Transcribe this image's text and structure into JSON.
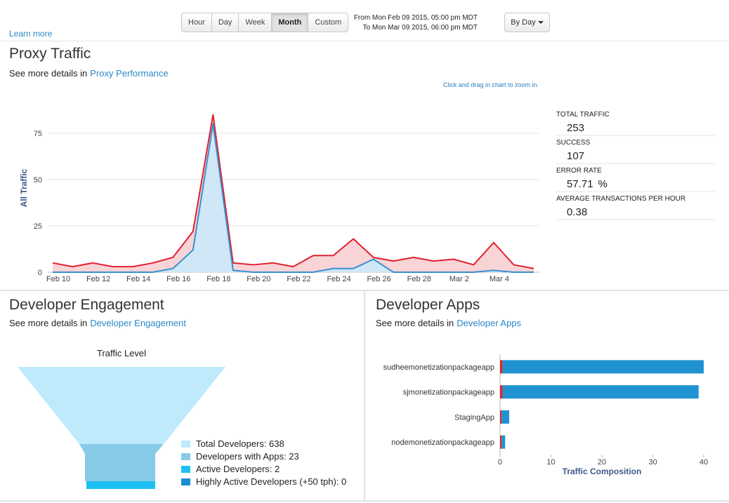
{
  "range_buttons": [
    "Hour",
    "Day",
    "Week",
    "Month",
    "Custom"
  ],
  "active_range_index": 3,
  "from": "From Mon Feb 09 2015, 05:00 pm MDT",
  "to": "To Mon Mar 09 2015, 06:00 pm MDT",
  "interval": "By Day",
  "learn_more": "Learn more",
  "proxy": {
    "title": "Proxy Traffic",
    "details_prefix": "See more details in",
    "details_link": "Proxy Performance",
    "zoom_hint": "Click and drag in chart to zoom in.",
    "chart": {
      "type": "area",
      "ylabel": "All Traffic",
      "categories": [
        "Feb 10",
        null,
        "Feb 12",
        null,
        "Feb 14",
        null,
        "Feb 16",
        null,
        "Feb 18",
        null,
        "Feb 20",
        null,
        "Feb 22",
        null,
        "Feb 24",
        null,
        "Feb 26",
        null,
        "Feb 28",
        null,
        "Mar 2",
        null,
        "Mar 4",
        null,
        null
      ],
      "series": [
        {
          "color": "#e0202f",
          "fill": "#f9d4d7",
          "values": [
            5,
            3,
            5,
            3,
            3,
            5,
            8,
            22,
            85,
            5,
            4,
            5,
            3,
            9,
            9,
            18,
            8,
            6,
            8,
            6,
            7,
            4,
            16,
            4,
            2
          ]
        },
        {
          "color": "#3a8fd0",
          "fill": "#cfe7f6",
          "values": [
            0,
            0,
            0,
            0,
            0,
            0,
            2,
            12,
            80,
            1,
            0,
            0,
            0,
            0,
            2,
            2,
            7,
            0,
            0,
            0,
            0,
            0,
            1,
            0,
            0
          ]
        }
      ],
      "ylim": [
        0,
        90
      ],
      "yticks": [
        0,
        25,
        50,
        75
      ],
      "grid": true
    },
    "stats": [
      {
        "label": "TOTAL TRAFFIC",
        "value": 253
      },
      {
        "label": "SUCCESS",
        "value": 107
      },
      {
        "label": "ERROR RATE",
        "value": 57.71,
        "unit": "%"
      },
      {
        "label": "AVERAGE TRANSACTIONS PER HOUR",
        "value": 0.38
      }
    ]
  },
  "engagement": {
    "title": "Developer Engagement",
    "details_prefix": "See more details in",
    "details_link": "Developer Engagement",
    "funnel": {
      "title": "Traffic Level",
      "levels": [
        {
          "label": "Total Developers: 638",
          "color": "#bfeafc"
        },
        {
          "label": "Developers with Apps: 23",
          "color": "#86cbe8"
        },
        {
          "label": "Active Developers: 2",
          "color": "#1ec0f3"
        },
        {
          "label": "Highly Active Developers (+50 tph): 0",
          "color": "#1a8fd0"
        }
      ]
    }
  },
  "apps": {
    "title": "Developer Apps",
    "details_prefix": "See more details in",
    "details_link": "Developer Apps",
    "chart": {
      "type": "bar",
      "orientation": "horizontal",
      "stacked": true,
      "xlabel": "Traffic Composition",
      "categories": [
        "sudheemonetizationpackageapp",
        "sjmonetizationpackageapp",
        "StagingApp",
        "nodemonetizationpackageapp"
      ],
      "series": [
        {
          "color": "#d9262f",
          "values": [
            0.5,
            0.5,
            0.3,
            0.3
          ]
        },
        {
          "color": "#1f93d2",
          "values": [
            39.5,
            38.5,
            1.5,
            0.7
          ]
        }
      ],
      "xlim": [
        0,
        40
      ],
      "xticks": [
        0,
        10,
        20,
        30,
        40
      ]
    }
  }
}
